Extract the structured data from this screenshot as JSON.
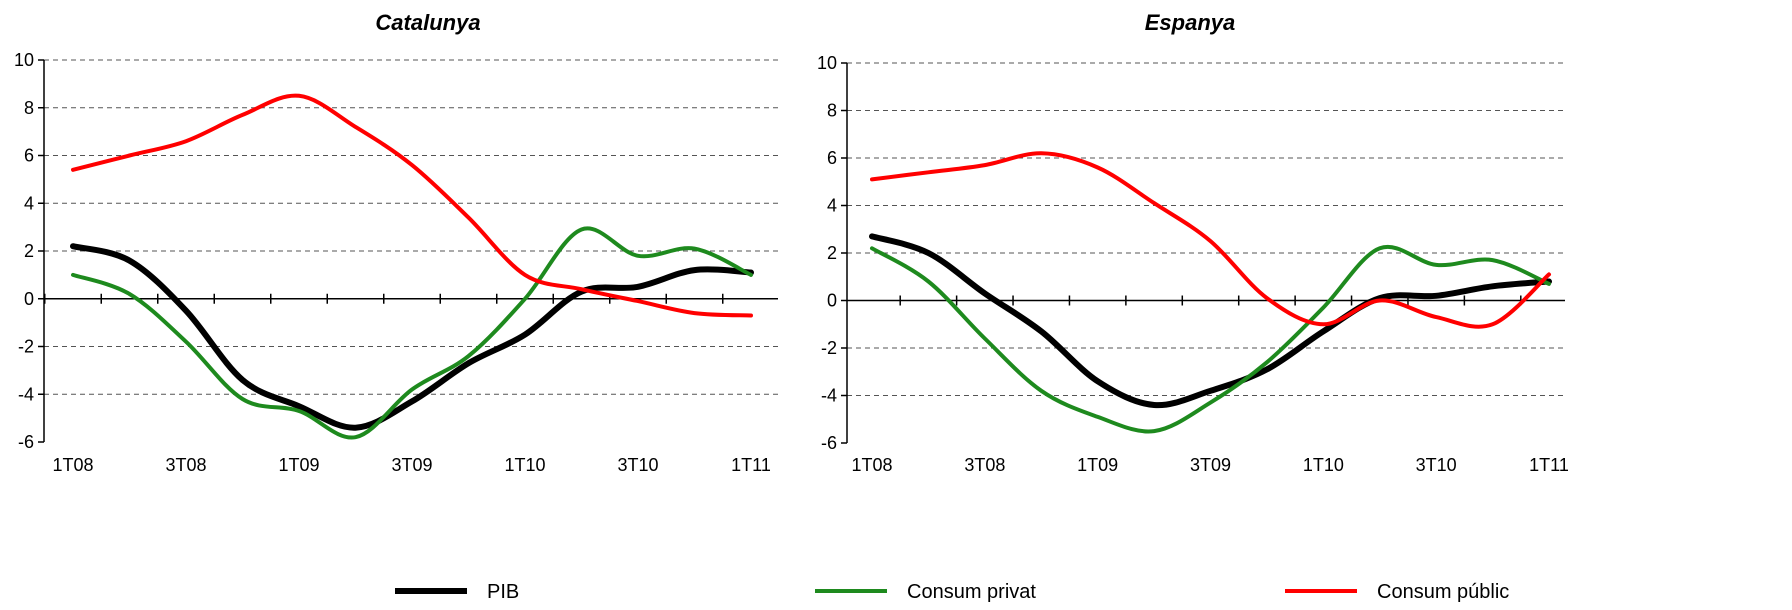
{
  "chart_data": [
    {
      "type": "line",
      "title": "Catalunya",
      "categories": [
        "1T08",
        "2T08",
        "3T08",
        "4T08",
        "1T09",
        "2T09",
        "3T09",
        "4T09",
        "1T10",
        "2T10",
        "3T10",
        "4T10",
        "1T11"
      ],
      "x_tick_labels": [
        "1T08",
        "3T08",
        "1T09",
        "3T09",
        "1T10",
        "3T10",
        "1T11"
      ],
      "y_ticks": [
        "10",
        "8",
        "6",
        "4",
        "2",
        "0",
        "-2",
        "-4",
        "-6"
      ],
      "ylim": [
        -6,
        10
      ],
      "grid": true,
      "series": [
        {
          "name": "PIB",
          "color": "#000000",
          "values": [
            2.2,
            1.6,
            -0.5,
            -3.4,
            -4.5,
            -5.4,
            -4.3,
            -2.7,
            -1.5,
            0.3,
            0.5,
            1.2,
            1.1
          ]
        },
        {
          "name": "Consum privat",
          "color": "#1e8a1e",
          "values": [
            1.0,
            0.2,
            -1.8,
            -4.2,
            -4.7,
            -5.8,
            -3.8,
            -2.4,
            0.0,
            2.9,
            1.8,
            2.1,
            1.0
          ]
        },
        {
          "name": "Consum públic",
          "color": "#ff0000",
          "values": [
            5.4,
            6.0,
            6.6,
            7.7,
            8.5,
            7.2,
            5.6,
            3.4,
            1.0,
            0.4,
            -0.1,
            -0.6,
            -0.7
          ]
        }
      ]
    },
    {
      "type": "line",
      "title": "Espanya",
      "categories": [
        "1T08",
        "2T08",
        "3T08",
        "4T08",
        "1T09",
        "2T09",
        "3T09",
        "4T09",
        "1T10",
        "2T10",
        "3T10",
        "4T10",
        "1T11"
      ],
      "x_tick_labels": [
        "1T08",
        "3T08",
        "1T09",
        "3T09",
        "1T10",
        "3T10",
        "1T11"
      ],
      "y_ticks": [
        "10",
        "8",
        "6",
        "4",
        "2",
        "0",
        "-2",
        "-4",
        "-6"
      ],
      "ylim": [
        -6,
        10
      ],
      "grid": true,
      "series": [
        {
          "name": "PIB",
          "color": "#000000",
          "values": [
            2.7,
            2.0,
            0.3,
            -1.3,
            -3.4,
            -4.4,
            -3.8,
            -2.9,
            -1.3,
            0.1,
            0.2,
            0.6,
            0.8
          ]
        },
        {
          "name": "Consum privat",
          "color": "#1e8a1e",
          "values": [
            2.2,
            0.8,
            -1.6,
            -3.8,
            -4.9,
            -5.5,
            -4.3,
            -2.6,
            -0.3,
            2.2,
            1.5,
            1.7,
            0.7
          ]
        },
        {
          "name": "Consum públic",
          "color": "#ff0000",
          "values": [
            5.1,
            5.4,
            5.7,
            6.2,
            5.6,
            4.1,
            2.5,
            0.1,
            -1.0,
            0.0,
            -0.7,
            -1.0,
            1.1
          ]
        }
      ]
    }
  ],
  "legend": {
    "items": [
      {
        "label": "PIB",
        "color": "#000000"
      },
      {
        "label": "Consum privat",
        "color": "#1e8a1e"
      },
      {
        "label": "Consum públic",
        "color": "#ff0000"
      }
    ],
    "placement": "bottom"
  }
}
